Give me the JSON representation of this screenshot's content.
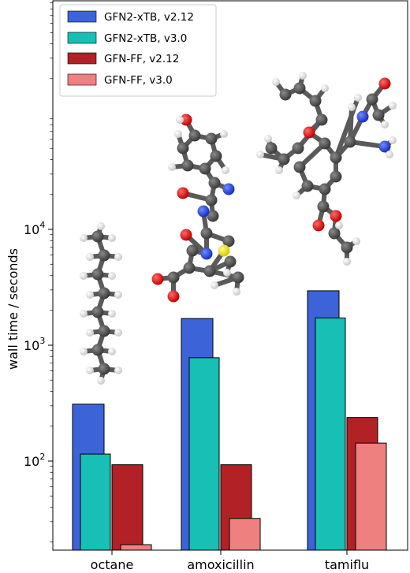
{
  "chart_data": {
    "type": "bar",
    "title": "",
    "xlabel": "",
    "ylabel": "wall time / seconds",
    "yscale": "log",
    "ylim": [
      14,
      400000
    ],
    "yticks": [
      {
        "value": 100,
        "base": "10",
        "exp": "2"
      },
      {
        "value": 1000,
        "base": "10",
        "exp": "3"
      },
      {
        "value": 10000,
        "base": "10",
        "exp": "4"
      }
    ],
    "categories": [
      "octane",
      "amoxicillin",
      "tamiflu"
    ],
    "series": [
      {
        "name": "GFN2-xTB, v2.12",
        "color": "#3d63d9",
        "values": [
          310,
          1700,
          2950
        ]
      },
      {
        "name": "GFN2-xTB, v3.0",
        "color": "#17bfb5",
        "values": [
          115,
          780,
          1720
        ]
      },
      {
        "name": "GFN-FF, v2.12",
        "color": "#b22125",
        "values": [
          93,
          93,
          238
        ]
      },
      {
        "name": "GFN-FF, v3.0",
        "color": "#ef8080",
        "values": [
          19,
          32,
          143
        ]
      }
    ],
    "legend_position": "top-left",
    "grid": false,
    "molecule_images": [
      "octane molecule",
      "amoxicillin molecule",
      "tamiflu molecule"
    ]
  }
}
